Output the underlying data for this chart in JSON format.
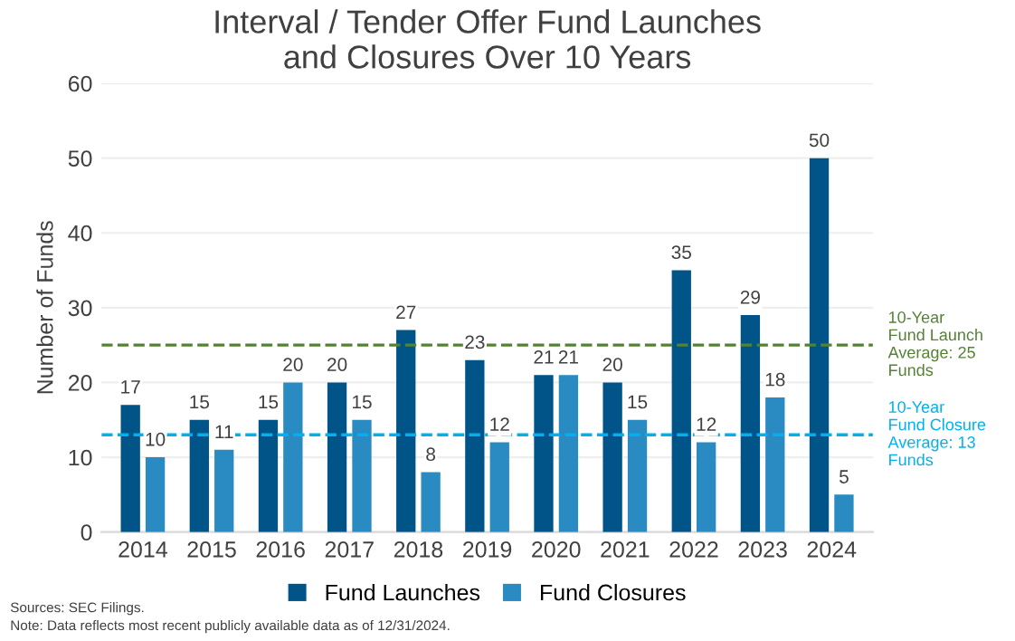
{
  "chart_data": {
    "type": "bar",
    "title": "Interval / Tender Offer Fund Launches\nand Closures Over 10 Years",
    "ylabel": "Number of Funds",
    "categories": [
      "2014",
      "2015",
      "2016",
      "2017",
      "2018",
      "2019",
      "2020",
      "2021",
      "2022",
      "2023",
      "2024"
    ],
    "series": [
      {
        "name": "Fund Launches",
        "color": "#005487",
        "values": [
          17,
          15,
          15,
          20,
          27,
          23,
          21,
          20,
          35,
          29,
          50
        ]
      },
      {
        "name": "Fund Closures",
        "color": "#2a8bc2",
        "values": [
          10,
          11,
          20,
          15,
          8,
          12,
          21,
          15,
          12,
          18,
          5
        ]
      }
    ],
    "ylim": [
      0,
      60
    ],
    "yticks": [
      0,
      10,
      20,
      30,
      40,
      50,
      60
    ],
    "grid": "y",
    "legend": "bottom",
    "data_labels": true,
    "ref_lines": [
      {
        "axis": "y",
        "value": 25,
        "label": "10-Year\nFund Launch\nAverage: 25\nFunds",
        "color": "#548235",
        "line_style": "dashed"
      },
      {
        "axis": "y",
        "value": 13,
        "label": "10-Year\nFund Closure\nAverage: 13\nFunds",
        "color": "#00b0f0",
        "line_style": "dashed"
      }
    ],
    "annotations": [
      "Sources: SEC Filings.",
      "Note: Data reflects most recent publicly available data as of 12/31/2024."
    ]
  }
}
